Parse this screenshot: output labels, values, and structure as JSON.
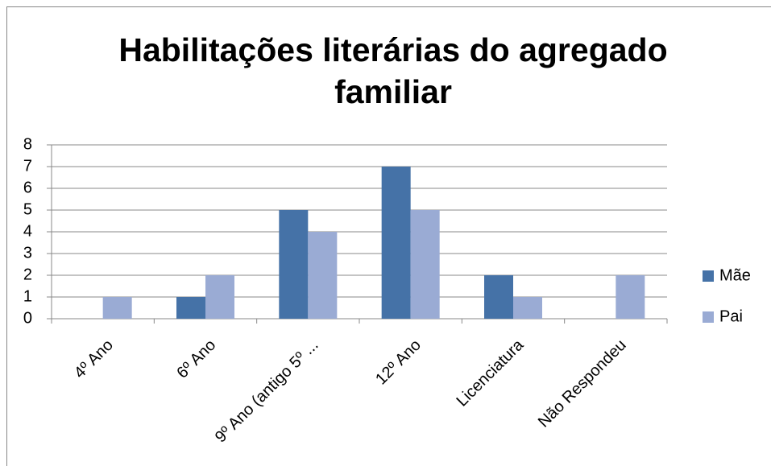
{
  "chart_data": {
    "type": "bar",
    "title": "Habilitações literárias do agregado familiar",
    "categories": [
      "4º Ano",
      "6º Ano",
      "9º Ano (antigo 5º ...",
      "12º Ano",
      "Licenciatura",
      "Não Respondeu"
    ],
    "series": [
      {
        "name": "Mãe",
        "color": "#4572a7",
        "values": [
          0,
          1,
          5,
          7,
          2,
          0
        ]
      },
      {
        "name": "Pai",
        "color": "#9aabd4",
        "values": [
          1,
          2,
          4,
          5,
          1,
          2
        ]
      }
    ],
    "ylim": [
      0,
      8
    ],
    "yticks": [
      0,
      1,
      2,
      3,
      4,
      5,
      6,
      7,
      8
    ],
    "grid": true,
    "legend": "right"
  }
}
